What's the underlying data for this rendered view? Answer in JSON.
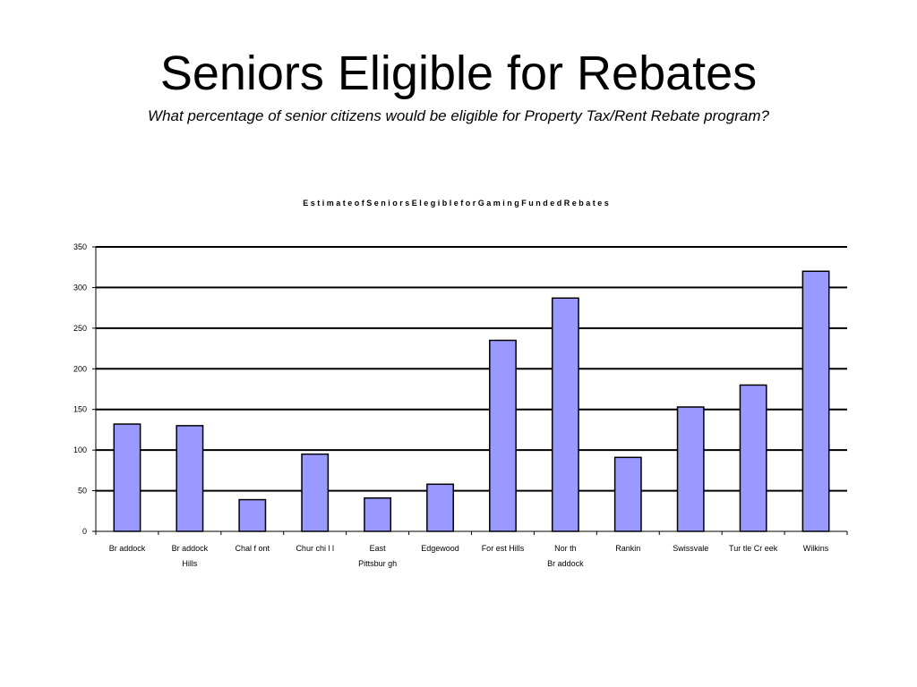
{
  "slide": {
    "title": "Seniors Eligible for Rebates",
    "subtitle": "What percentage of senior citizens would be eligible for Property Tax/Rent Rebate program?"
  },
  "chart_data": {
    "type": "bar",
    "title": "E s t i m a t e  o f   S e n i o r s  E l e g i b l e  f o r   G a m i n g  F u n d e d  R e b a t e s",
    "categories": [
      [
        "Br addock"
      ],
      [
        "Br addock",
        "Hills"
      ],
      [
        "Chal f ont"
      ],
      [
        "Chur chi l l"
      ],
      [
        "East",
        "Pittsbur gh"
      ],
      [
        "Edgewood"
      ],
      [
        "For est Hills"
      ],
      [
        "Nor th",
        "Br addock"
      ],
      [
        "Rankin"
      ],
      [
        "Swissvale"
      ],
      [
        "Tur tle Cr eek"
      ],
      [
        "Wilkins"
      ]
    ],
    "values": [
      132,
      130,
      39,
      95,
      41,
      58,
      235,
      287,
      91,
      153,
      180,
      320
    ],
    "ylim": [
      0,
      350
    ],
    "yticks": [
      0,
      50,
      100,
      150,
      200,
      250,
      300,
      350
    ],
    "grid": true,
    "bar_color": "#9999ff",
    "bar_stroke": "#000000"
  }
}
